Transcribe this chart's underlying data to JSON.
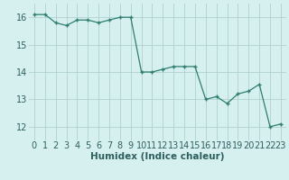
{
  "x": [
    0,
    1,
    2,
    3,
    4,
    5,
    6,
    7,
    8,
    9,
    10,
    11,
    12,
    13,
    14,
    15,
    16,
    17,
    18,
    19,
    20,
    21,
    22,
    23
  ],
  "y": [
    16.1,
    16.1,
    15.8,
    15.7,
    15.9,
    15.9,
    15.8,
    15.9,
    16.0,
    16.0,
    14.0,
    14.0,
    14.1,
    14.2,
    14.2,
    14.2,
    13.0,
    13.1,
    12.85,
    13.2,
    13.3,
    13.55,
    12.0,
    12.1
  ],
  "xlabel": "Humidex (Indice chaleur)",
  "ylim": [
    11.5,
    16.5
  ],
  "xlim": [
    -0.5,
    23.5
  ],
  "yticks": [
    12,
    13,
    14,
    15,
    16
  ],
  "xticks": [
    0,
    1,
    2,
    3,
    4,
    5,
    6,
    7,
    8,
    9,
    10,
    11,
    12,
    13,
    14,
    15,
    16,
    17,
    18,
    19,
    20,
    21,
    22,
    23
  ],
  "line_color": "#2e7d6e",
  "bg_color": "#d6f0f0",
  "grid_color": "#b0d0d0",
  "text_color": "#2e5e5e",
  "xlabel_fontsize": 7.5,
  "tick_fontsize": 7.0
}
